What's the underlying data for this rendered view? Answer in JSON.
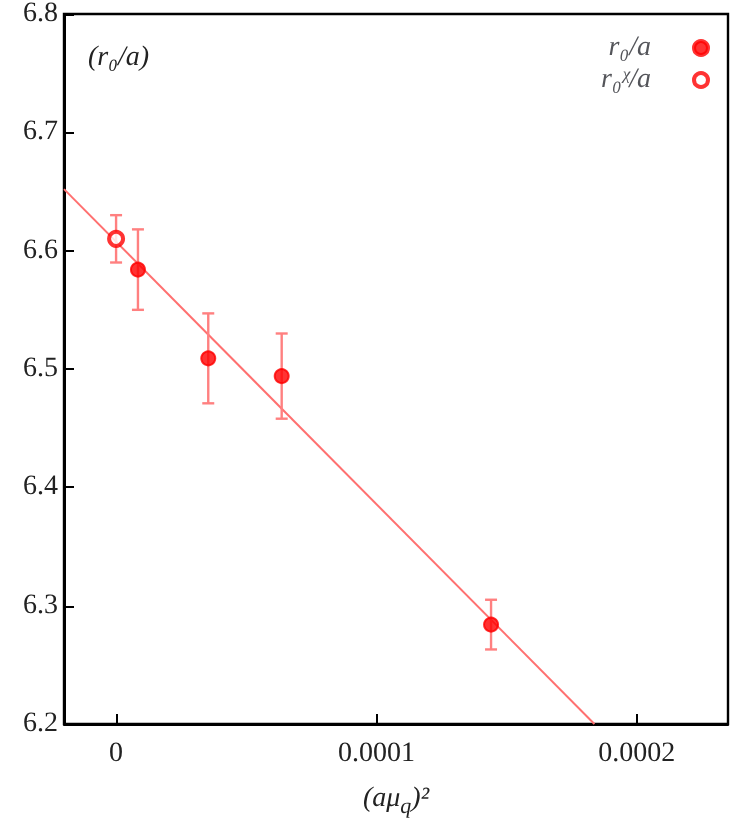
{
  "chart_data": {
    "type": "scatter",
    "xlabel": "(aμ$_{q}$)²",
    "annotations": [
      "(r₀/a)"
    ],
    "xlim": [
      -2e-05,
      0.000235
    ],
    "xticks": [
      0,
      0.0001,
      0.0002
    ],
    "ylim": [
      6.2,
      6.8
    ],
    "yticks": [
      6.2,
      6.3,
      6.4,
      6.5,
      6.6,
      6.7,
      6.8
    ],
    "grid": false,
    "legend": "top right",
    "marker": "circle",
    "series": [
      {
        "name": "r₀/a",
        "color": "#ff0000",
        "x": [
          8.4e-06,
          3.54e-05,
          6.36e-05,
          0.000144
        ],
        "values": [
          6.584,
          6.509,
          6.494,
          6.284
        ],
        "errors": [
          0.034,
          0.038,
          0.036,
          0.021
        ]
      },
      {
        "name": "r₀ᵡ/a",
        "color": "#ff0000",
        "x": [
          0
        ],
        "values": [
          6.61
        ],
        "errors": [
          0.02
        ]
      },
      {
        "type": "line",
        "color": "#ff7070",
        "x": [
          -2e-05,
          0.0001837
        ],
        "values": [
          6.652,
          6.2
        ],
        "marker": "none"
      }
    ]
  }
}
